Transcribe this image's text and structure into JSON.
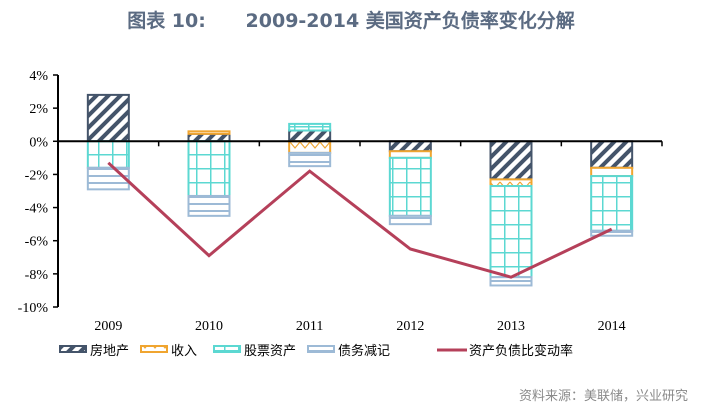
{
  "title": "图表 10:      2009-2014 美国资产负债率变化分解",
  "source": "资料来源：美联储，兴业研究",
  "colors": {
    "real_estate": "#44546a",
    "income": "#f0a530",
    "stock": "#5cd8d2",
    "debt": "#9dbad6",
    "line": "#b5405a"
  },
  "chart_data": {
    "type": "bar",
    "stacked": true,
    "categories": [
      "2009",
      "2010",
      "2011",
      "2012",
      "2013",
      "2014"
    ],
    "ylim": [
      -10,
      4
    ],
    "yticks": [
      "4%",
      "2%",
      "0%",
      "-2%",
      "-4%",
      "-6%",
      "-8%",
      "-10%"
    ],
    "ytick_values": [
      4,
      2,
      0,
      -2,
      -4,
      -6,
      -8,
      -10
    ],
    "grid": false,
    "legend_position": "bottom",
    "series": [
      {
        "name": "房地产",
        "kind": "bar",
        "pattern": "diagonal-stripes",
        "values": [
          2.8,
          0.45,
          0.65,
          -0.6,
          -2.3,
          -1.6
        ]
      },
      {
        "name": "收入",
        "kind": "bar",
        "pattern": "zigzag",
        "values": [
          0,
          0.15,
          -0.7,
          -0.4,
          -0.4,
          -0.5
        ]
      },
      {
        "name": "股票资产",
        "kind": "bar",
        "pattern": "grid",
        "values": [
          -1.6,
          -3.3,
          0.4,
          -3.5,
          -5.5,
          -3.3
        ]
      },
      {
        "name": "债务减记",
        "kind": "bar",
        "pattern": "horizontal-lines",
        "values": [
          -1.3,
          -1.2,
          -0.8,
          -0.5,
          -0.5,
          -0.3
        ]
      },
      {
        "name": "资产负债比变动率",
        "kind": "line",
        "values": [
          -1.3,
          -6.9,
          -1.8,
          -6.5,
          -8.2,
          -5.3
        ]
      }
    ]
  }
}
